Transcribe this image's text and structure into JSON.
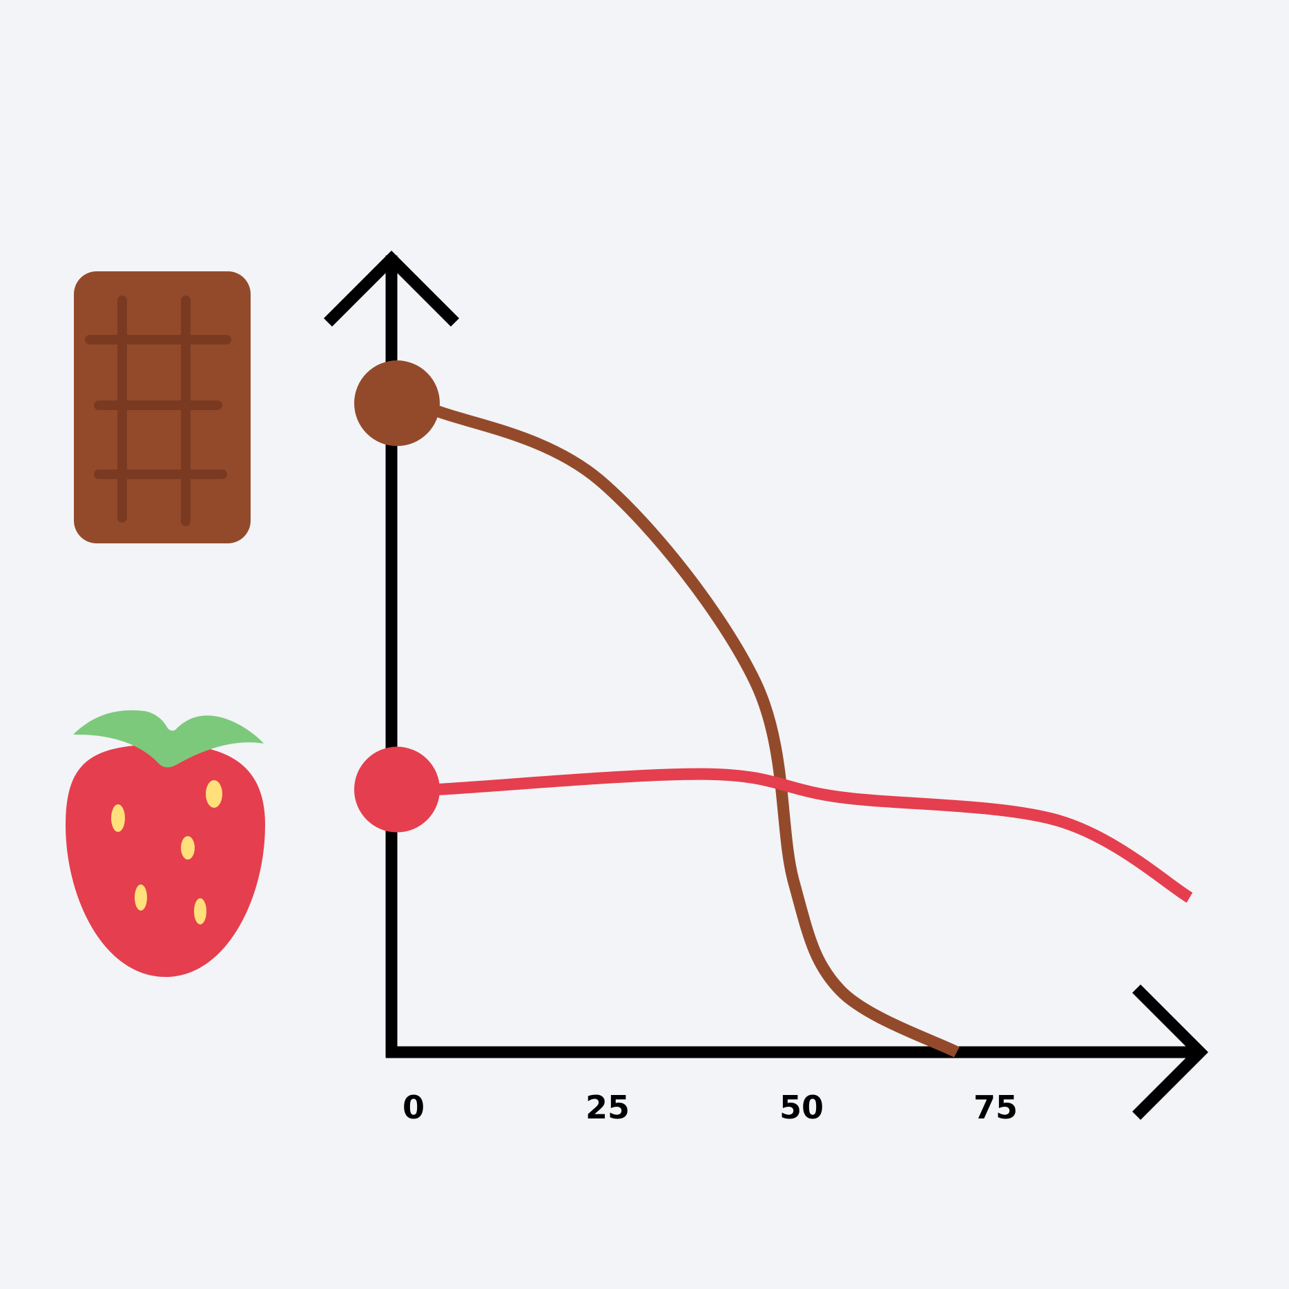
{
  "chart_data": {
    "type": "line",
    "title": "",
    "xlabel": "",
    "ylabel": "",
    "x_ticks": [
      0,
      25,
      50,
      75
    ],
    "x_tick_labels": [
      "0",
      "25",
      "50",
      "75"
    ],
    "xlim": [
      0,
      100
    ],
    "grid": false,
    "legend": "icons-left",
    "series": [
      {
        "icon": "chocolate-bar-icon",
        "color": "#934a2b",
        "points": [
          [
            0,
            0.84
          ],
          [
            3,
            0.83
          ],
          [
            24,
            0.74
          ],
          [
            44,
            0.48
          ],
          [
            49,
            0.22
          ],
          [
            55,
            0.08
          ],
          [
            70,
            0.0
          ]
        ]
      },
      {
        "icon": "strawberry-icon",
        "color": "#e53e4e",
        "points": [
          [
            0,
            0.34
          ],
          [
            3,
            0.34
          ],
          [
            38,
            0.36
          ],
          [
            55,
            0.33
          ],
          [
            83,
            0.3
          ],
          [
            100,
            0.2
          ]
        ]
      }
    ]
  },
  "colors": {
    "background": "#f2f4f7",
    "axis": "#000000",
    "chocolate": "#934a2b",
    "chocolate_dark": "#7a3a22",
    "strawberry": "#e53e4e",
    "leaf": "#7dc97c",
    "seed": "#ffe07a"
  }
}
